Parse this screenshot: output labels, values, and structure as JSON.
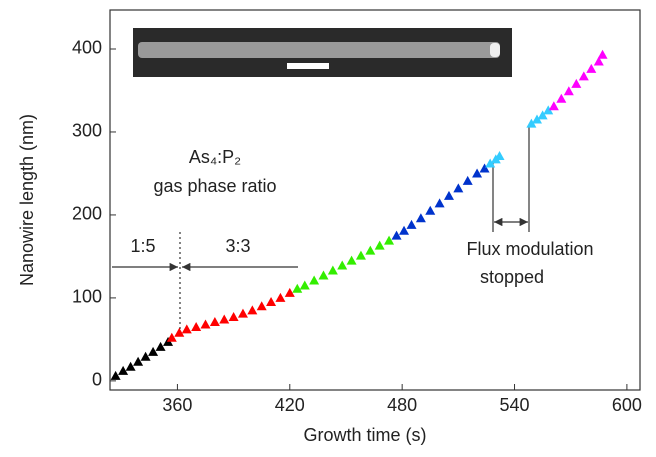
{
  "chart_data": {
    "type": "scatter",
    "x_label": "Growth time (s)",
    "y_label": "Nanowire length (nm)",
    "xlim": [
      324,
      607
    ],
    "ylim": [
      -11,
      447
    ],
    "xticks": [
      360,
      420,
      480,
      540,
      600
    ],
    "yticks": [
      0,
      100,
      200,
      300,
      400
    ],
    "marker": "triangle",
    "series": [
      {
        "color": "#000000",
        "x": [
          327,
          331,
          335,
          339,
          343,
          347,
          351,
          355
        ],
        "values": [
          6,
          12,
          17,
          23,
          29,
          35,
          41,
          47
        ]
      },
      {
        "color": "#ff0000",
        "x": [
          357,
          361,
          365,
          370,
          375,
          380,
          385,
          390,
          395,
          400,
          405,
          410,
          415,
          420
        ],
        "values": [
          52,
          58,
          62,
          65,
          68,
          71,
          74,
          77,
          81,
          85,
          90,
          95,
          100,
          106
        ]
      },
      {
        "color": "#33ee00",
        "x": [
          424,
          428,
          433,
          438,
          443,
          448,
          453,
          458,
          463,
          468,
          473
        ],
        "values": [
          111,
          115,
          121,
          127,
          133,
          139,
          145,
          151,
          157,
          163,
          169
        ]
      },
      {
        "color": "#0033cc",
        "x": [
          477,
          481,
          485,
          490,
          495,
          500,
          505,
          510,
          515,
          520,
          524
        ],
        "values": [
          175,
          181,
          188,
          196,
          205,
          214,
          223,
          232,
          241,
          250,
          256
        ]
      },
      {
        "color": "#33ccff",
        "x": [
          527,
          530,
          532
        ],
        "values": [
          262,
          267,
          271
        ]
      },
      {
        "color": "#33ccff",
        "x": [
          549,
          552,
          555,
          558
        ],
        "values": [
          310,
          315,
          320,
          326
        ]
      },
      {
        "color": "#ff00ff",
        "x": [
          561,
          565,
          569,
          573,
          577,
          581,
          585,
          587
        ],
        "values": [
          331,
          340,
          349,
          358,
          367,
          376,
          385,
          393
        ]
      }
    ],
    "annotations": [
      "As₄:P₂",
      "gas phase ratio",
      "1:5",
      "3:3",
      "Flux modulation",
      "stopped"
    ]
  }
}
